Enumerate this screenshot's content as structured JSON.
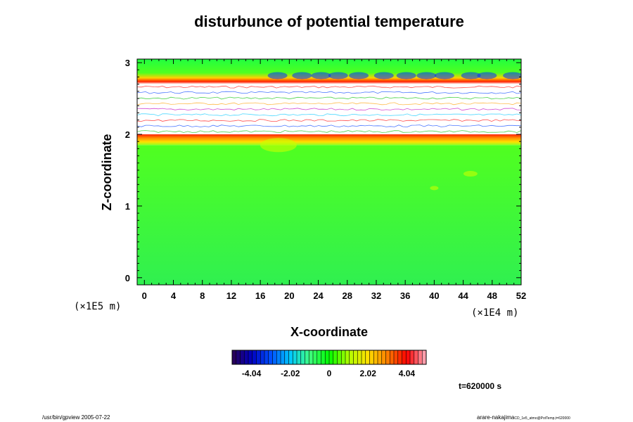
{
  "chart_data": {
    "type": "heatmap",
    "title": "disturbunce of potential temperature",
    "xlabel": "X-coordinate",
    "ylabel": "Z-coordinate",
    "x_unit": "(×1E4 m)",
    "y_unit": "(×1E5 m)",
    "xlim": [
      -1,
      52
    ],
    "ylim": [
      -0.1,
      3.05
    ],
    "x_ticks": [
      0,
      4,
      8,
      12,
      16,
      20,
      24,
      28,
      32,
      36,
      40,
      44,
      48,
      52
    ],
    "y_ticks": [
      0,
      1,
      2,
      3
    ],
    "colorbar": {
      "ticks": [
        -4.04,
        -2.02,
        0,
        2.02,
        4.04
      ],
      "tick_labels": [
        "-4.04",
        "-2.02",
        "0",
        "2.02",
        "4.04"
      ],
      "range": [
        -5.05,
        5.05
      ],
      "colors": [
        "#2b0050",
        "#0000c0",
        "#0050ff",
        "#00c8ff",
        "#40ff80",
        "#00ff00",
        "#b0ff00",
        "#ffe000",
        "#ff8000",
        "#ff0000",
        "#ffb0c0"
      ]
    },
    "regions": [
      {
        "z": [
          -0.1,
          1.85
        ],
        "value": 0.2
      },
      {
        "z": [
          1.85,
          2.0
        ],
        "value": 2.6
      },
      {
        "z": [
          2.0,
          2.7
        ],
        "value": null
      },
      {
        "z": [
          2.7,
          3.05
        ],
        "value": 0.4
      }
    ],
    "grid": false
  },
  "annotations": {
    "time": "t=620000 s",
    "footer_left": "/usr/bin/gpview 2005-07-22",
    "footer_right_main": "arare-nakajima",
    "footer_right_sub": "CD_1e5_atmo@PotTemp,t=620000"
  }
}
